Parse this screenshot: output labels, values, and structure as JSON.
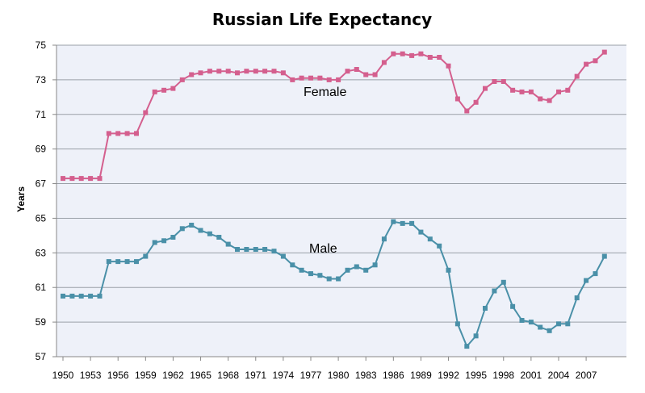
{
  "chart_data": {
    "type": "line",
    "title": "Russian Life Expectancy",
    "xlabel": "",
    "ylabel": "Years",
    "ylim": [
      57,
      75
    ],
    "yticks": [
      57,
      59,
      61,
      63,
      65,
      67,
      69,
      71,
      73,
      75
    ],
    "xticks": [
      1950,
      1953,
      1956,
      1959,
      1962,
      1965,
      1968,
      1971,
      1974,
      1977,
      1980,
      1983,
      1986,
      1989,
      1992,
      1995,
      1998,
      2001,
      2004,
      2007
    ],
    "x": [
      1950,
      1951,
      1952,
      1953,
      1954,
      1955,
      1956,
      1957,
      1958,
      1959,
      1960,
      1961,
      1962,
      1963,
      1964,
      1965,
      1966,
      1967,
      1968,
      1969,
      1970,
      1971,
      1972,
      1973,
      1974,
      1975,
      1976,
      1977,
      1978,
      1979,
      1980,
      1981,
      1982,
      1983,
      1984,
      1985,
      1986,
      1987,
      1988,
      1989,
      1990,
      1991,
      1992,
      1993,
      1994,
      1995,
      1996,
      1997,
      1998,
      1999,
      2000,
      2001,
      2002,
      2003,
      2004,
      2005,
      2006,
      2007,
      2008,
      2009
    ],
    "grid": true,
    "plot_bg": "#eef1f9",
    "series": [
      {
        "name": "Female",
        "color": "#d45f8e",
        "values": [
          67.3,
          67.3,
          67.3,
          67.3,
          67.3,
          69.9,
          69.9,
          69.9,
          69.9,
          71.1,
          72.3,
          72.4,
          72.5,
          73.0,
          73.3,
          73.4,
          73.5,
          73.5,
          73.5,
          73.4,
          73.5,
          73.5,
          73.5,
          73.5,
          73.4,
          73.0,
          73.1,
          73.1,
          73.1,
          73.0,
          73.0,
          73.5,
          73.6,
          73.3,
          73.3,
          74.0,
          74.5,
          74.5,
          74.4,
          74.5,
          74.3,
          74.3,
          73.8,
          71.9,
          71.2,
          71.7,
          72.5,
          72.9,
          72.9,
          72.4,
          72.3,
          72.3,
          71.9,
          71.8,
          72.3,
          72.4,
          73.2,
          73.9,
          74.1,
          74.6
        ]
      },
      {
        "name": "Male",
        "color": "#4a90a8",
        "values": [
          60.5,
          60.5,
          60.5,
          60.5,
          60.5,
          62.5,
          62.5,
          62.5,
          62.5,
          62.8,
          63.6,
          63.7,
          63.9,
          64.4,
          64.6,
          64.3,
          64.1,
          63.9,
          63.5,
          63.2,
          63.2,
          63.2,
          63.2,
          63.1,
          62.8,
          62.3,
          62.0,
          61.8,
          61.7,
          61.5,
          61.5,
          62.0,
          62.2,
          62.0,
          62.3,
          63.8,
          64.8,
          64.7,
          64.7,
          64.2,
          63.8,
          63.4,
          62.0,
          58.9,
          57.6,
          58.2,
          59.8,
          60.8,
          61.3,
          59.9,
          59.1,
          59.0,
          58.7,
          58.5,
          58.9,
          58.9,
          60.4,
          61.4,
          61.8,
          62.8
        ]
      }
    ]
  }
}
